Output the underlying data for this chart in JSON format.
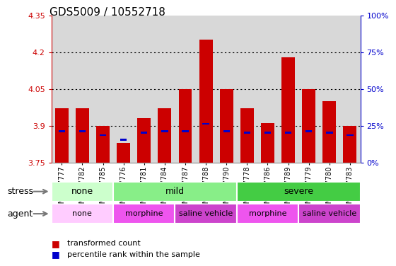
{
  "title": "GDS5009 / 10552718",
  "samples": [
    "GSM1217777",
    "GSM1217782",
    "GSM1217785",
    "GSM1217776",
    "GSM1217781",
    "GSM1217784",
    "GSM1217787",
    "GSM1217788",
    "GSM1217790",
    "GSM1217778",
    "GSM1217786",
    "GSM1217789",
    "GSM1217779",
    "GSM1217780",
    "GSM1217783"
  ],
  "bar_heights": [
    3.97,
    3.97,
    3.9,
    3.83,
    3.93,
    3.97,
    4.05,
    4.25,
    4.05,
    3.97,
    3.91,
    4.18,
    4.05,
    4.0,
    3.9
  ],
  "blue_marker_pos": [
    3.878,
    3.878,
    3.862,
    3.842,
    3.872,
    3.878,
    3.878,
    3.908,
    3.878,
    3.872,
    3.872,
    3.872,
    3.878,
    3.872,
    3.862
  ],
  "ymin": 3.75,
  "ymax": 4.35,
  "yticks": [
    3.75,
    3.9,
    4.05,
    4.2,
    4.35
  ],
  "y2ticks_val": [
    0,
    25,
    50,
    75,
    100
  ],
  "y2ticks_label": [
    "0%",
    "25%",
    "50%",
    "75%",
    "100%"
  ],
  "bar_color": "#cc0000",
  "blue_color": "#0000cc",
  "bar_width": 0.65,
  "stress_groups": [
    {
      "label": "none",
      "start": 0,
      "end": 3
    },
    {
      "label": "mild",
      "start": 3,
      "end": 9
    },
    {
      "label": "severe",
      "start": 9,
      "end": 15
    }
  ],
  "stress_colors": {
    "none": "#ccffcc",
    "mild": "#88ee88",
    "severe": "#44cc44"
  },
  "agent_groups": [
    {
      "label": "none",
      "start": 0,
      "end": 3
    },
    {
      "label": "morphine",
      "start": 3,
      "end": 6
    },
    {
      "label": "saline vehicle",
      "start": 6,
      "end": 9
    },
    {
      "label": "morphine",
      "start": 9,
      "end": 12
    },
    {
      "label": "saline vehicle",
      "start": 12,
      "end": 15
    }
  ],
  "agent_colors": {
    "none": "#ffccff",
    "morphine": "#ee55ee",
    "saline vehicle": "#cc44cc"
  },
  "agent_color_list": [
    "#ffccff",
    "#ee55ee",
    "#cc44cc",
    "#ee55ee",
    "#cc44cc"
  ],
  "left_color": "#cc0000",
  "right_color": "#0000cc",
  "ax_bg_color": "#d8d8d8",
  "title_fontsize": 11,
  "tick_fontsize": 7,
  "label_fontsize": 9,
  "annotation_fontsize": 8,
  "row_label_fontsize": 9,
  "group_label_fontsize": 9
}
